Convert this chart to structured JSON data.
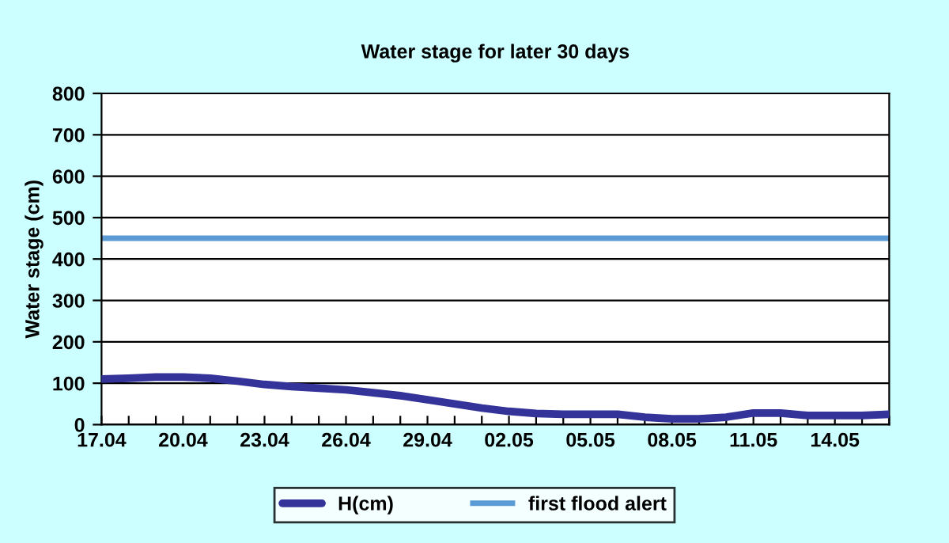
{
  "chart_data": {
    "type": "line",
    "title": "Water stage for later 30 days",
    "ylabel": "Water stage (cm)",
    "categories": [
      "17.04",
      null,
      null,
      "20.04",
      null,
      null,
      "23.04",
      null,
      null,
      "26.04",
      null,
      null,
      "29.04",
      null,
      null,
      "02.05",
      null,
      null,
      "05.05",
      null,
      null,
      "08.05",
      null,
      null,
      "11.05",
      null,
      null,
      "14.05",
      null,
      null
    ],
    "series": [
      {
        "name": "H(cm)",
        "color": "#333399",
        "values": [
          110,
          112,
          115,
          115,
          112,
          105,
          97,
          92,
          88,
          84,
          77,
          70,
          60,
          50,
          40,
          32,
          27,
          25,
          25,
          25,
          18,
          14,
          14,
          18,
          28,
          28,
          22,
          22,
          22,
          25
        ]
      }
    ],
    "ref_lines": [
      {
        "axis": "y",
        "value": 450,
        "label": "first flood alert",
        "color": "#5b9bd5"
      }
    ],
    "ylim": [
      0,
      800
    ],
    "yticks": [
      0,
      100,
      200,
      300,
      400,
      500,
      600,
      700,
      800
    ],
    "grid": "y",
    "legend": "bottom",
    "marker": "none",
    "line_style": "solid"
  }
}
